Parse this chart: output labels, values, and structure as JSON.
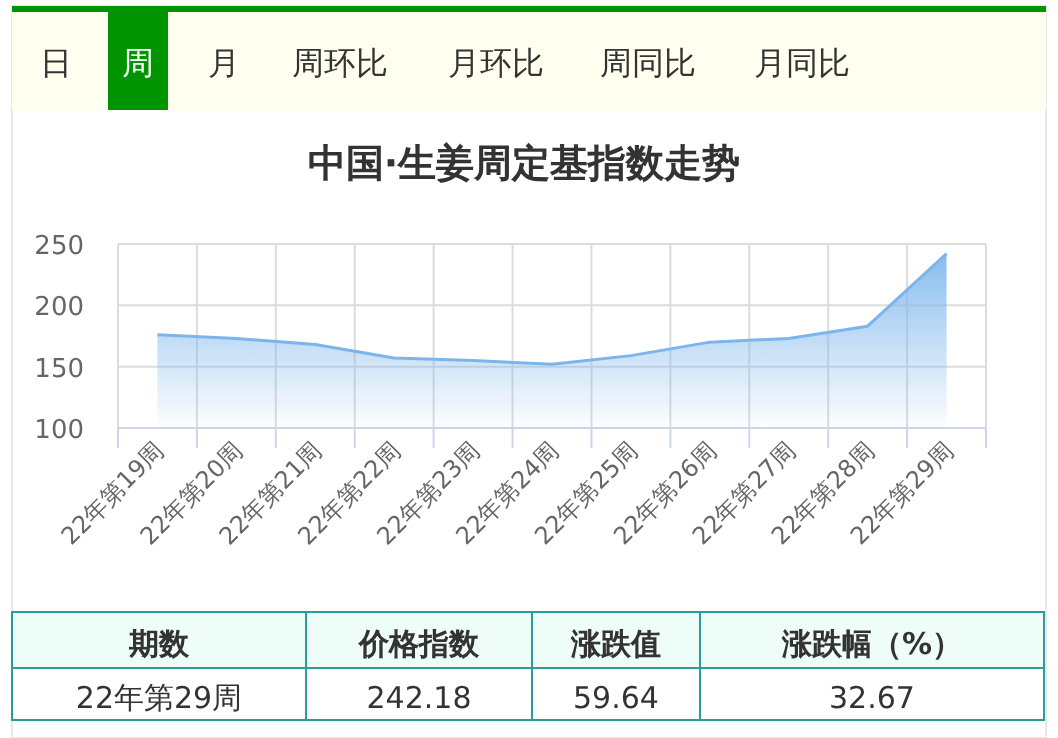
{
  "chart_data": {
    "type": "area",
    "title": "中国·生姜周定基指数走势",
    "categories": [
      "22年第19周",
      "22年第20周",
      "22年第21周",
      "22年第22周",
      "22年第23周",
      "22年第24周",
      "22年第25周",
      "22年第26周",
      "22年第27周",
      "22年第28周",
      "22年第29周"
    ],
    "series": [
      {
        "color": "#7cb5ec",
        "values": [
          176,
          173,
          168,
          157,
          155,
          152,
          159,
          170,
          173,
          183,
          242.18
        ]
      }
    ],
    "ylim": [
      100,
      250
    ],
    "yticks": [
      100,
      150,
      200,
      250
    ],
    "grid": true,
    "marker": "none",
    "annotations": [
      "日",
      "周",
      "月",
      "周环比",
      "月环比",
      "周同比",
      "月同比",
      "期数",
      "价格指数",
      "涨跌值",
      "涨跌幅（%）",
      "22年第29周",
      "242.18",
      "59.64",
      "32.67"
    ]
  }
}
